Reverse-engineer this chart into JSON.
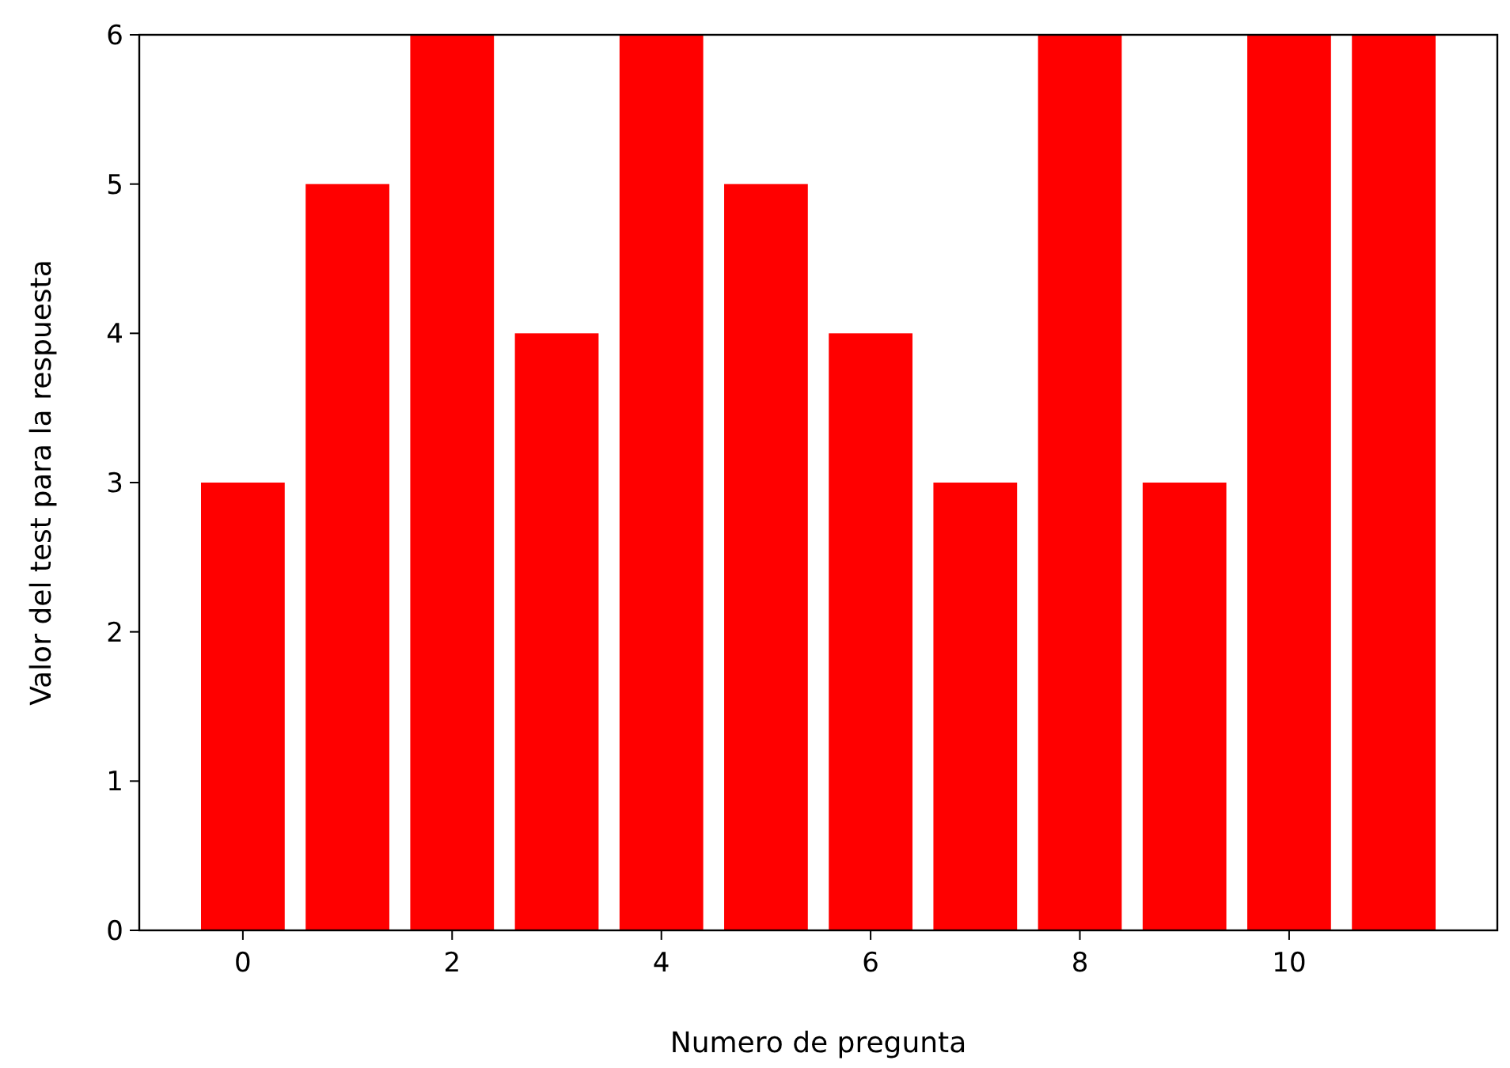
{
  "chart_data": {
    "type": "bar",
    "xlabel": "Numero de pregunta",
    "ylabel": "Valor del test para la respuesta",
    "x": [
      0,
      1,
      2,
      3,
      4,
      5,
      6,
      7,
      8,
      9,
      10,
      11
    ],
    "values": [
      3,
      5,
      6,
      4,
      6,
      5,
      4,
      3,
      6,
      3,
      6,
      6
    ],
    "color": "#ff0000",
    "xlim": [
      -0.99,
      11.99
    ],
    "xticks": [
      0,
      2,
      4,
      6,
      8,
      10
    ],
    "ylim": [
      0,
      6
    ],
    "yticks": [
      0,
      1,
      2,
      3,
      4,
      5,
      6
    ],
    "grid": false
  }
}
